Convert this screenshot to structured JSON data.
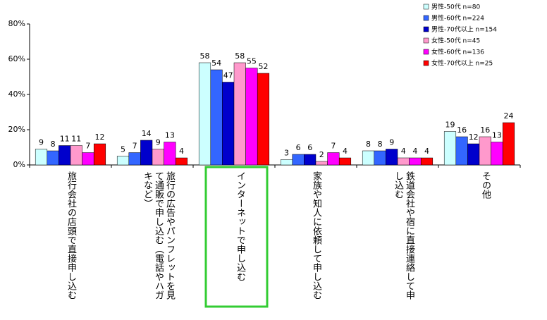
{
  "chart_data": {
    "type": "bar",
    "categories": [
      "旅行会社の店頭で直接申し込む",
      "旅行の広告やパンフレットを見て通販で申し込む（電話やハガキなど）",
      "インターネットで申し込む",
      "家族や知人に依頼して申し込む",
      "鉄道会社や宿に直接連絡して申し込む",
      "その他"
    ],
    "series": [
      {
        "name": "男性-50代 n=80",
        "color": "#ccffff",
        "values": [
          9,
          5,
          58,
          3,
          8,
          19
        ]
      },
      {
        "name": "男性-60代 n=224",
        "color": "#3366ff",
        "values": [
          8,
          7,
          54,
          6,
          8,
          16
        ]
      },
      {
        "name": "男性-70代以上 n=154",
        "color": "#0000cc",
        "values": [
          11,
          14,
          47,
          6,
          9,
          12
        ]
      },
      {
        "name": "女性-50代 n=45",
        "color": "#ff99cc",
        "values": [
          11,
          9,
          58,
          2,
          4,
          16
        ]
      },
      {
        "name": "女性-60代 n=136",
        "color": "#ff00ff",
        "values": [
          7,
          13,
          55,
          7,
          4,
          13
        ]
      },
      {
        "name": "女性-70代以上 n=25",
        "color": "#ff0000",
        "values": [
          12,
          4,
          52,
          4,
          4,
          24
        ]
      }
    ],
    "ylim": [
      0,
      80
    ],
    "yticks": [
      {
        "value": 0,
        "label": "0%"
      },
      {
        "value": 20,
        "label": "20%"
      },
      {
        "value": 40,
        "label": "40%"
      },
      {
        "value": 60,
        "label": "60%"
      },
      {
        "value": 80,
        "label": "80%"
      }
    ],
    "legend": "top-right"
  }
}
